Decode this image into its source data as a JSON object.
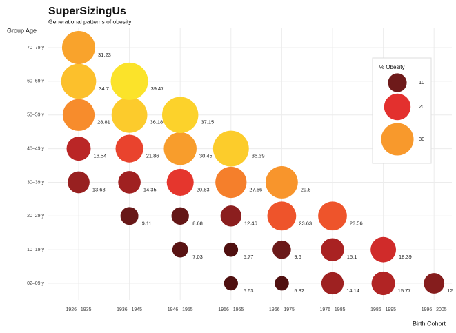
{
  "chart_data": {
    "type": "bubble",
    "title": "SuperSizingUs",
    "subtitle": "Generational patterns of obesity",
    "ylabel": "Group Age",
    "xlabel": "Birth Cohort",
    "categories": [
      "02–09 y",
      "10–19 y",
      "20–29 y",
      "30–39 y",
      "40–49 y",
      "50–59 y",
      "60–69 y",
      "70–79 y"
    ],
    "series": [
      {
        "name": "1926– 1935",
        "values": [
          null,
          null,
          null,
          13.63,
          16.54,
          28.81,
          34.7,
          31.23
        ]
      },
      {
        "name": "1936– 1945",
        "values": [
          null,
          null,
          9.11,
          14.35,
          21.86,
          36.18,
          39.47,
          null
        ]
      },
      {
        "name": "1946– 1955",
        "values": [
          null,
          7.03,
          8.68,
          20.63,
          30.45,
          37.15,
          null,
          null
        ]
      },
      {
        "name": "1956– 1965",
        "values": [
          5.63,
          5.77,
          12.46,
          27.66,
          36.39,
          null,
          null,
          null
        ]
      },
      {
        "name": "1966– 1975",
        "values": [
          5.82,
          9.6,
          23.63,
          29.6,
          null,
          null,
          null,
          null
        ]
      },
      {
        "name": "1976– 1985",
        "values": [
          14.14,
          15.1,
          23.56,
          null,
          null,
          null,
          null,
          null
        ]
      },
      {
        "name": "1986– 1995",
        "values": [
          15.77,
          18.39,
          null,
          null,
          null,
          null,
          null,
          null
        ]
      },
      {
        "name": "1996– 2005",
        "values": [
          12,
          null,
          null,
          null,
          null,
          null,
          null,
          null
        ]
      }
    ],
    "color_scale": {
      "domain": [
        5,
        40
      ],
      "colors": [
        "#4a0e0e",
        "#6e1a1a",
        "#a82222",
        "#e3302e",
        "#f2622a",
        "#f8992c",
        "#fcc22c",
        "#fbe72a"
      ]
    },
    "legend": {
      "title": "% Obesity",
      "values": [
        10,
        20,
        30
      ]
    },
    "grid": true
  }
}
